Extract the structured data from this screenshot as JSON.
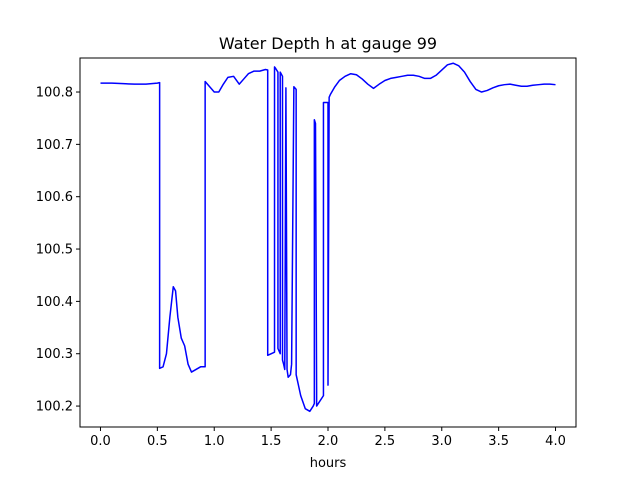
{
  "chart_data": {
    "type": "line",
    "title": "Water Depth h at gauge 99",
    "xlabel": "hours",
    "ylabel": "",
    "xlim": [
      -0.18,
      4.18
    ],
    "ylim": [
      100.16,
      100.865
    ],
    "xticks": [
      0.0,
      0.5,
      1.0,
      1.5,
      2.0,
      2.5,
      3.0,
      3.5,
      4.0
    ],
    "xtick_labels": [
      "0.0",
      "0.5",
      "1.0",
      "1.5",
      "2.0",
      "2.5",
      "3.0",
      "3.5",
      "4.0"
    ],
    "yticks": [
      100.2,
      100.3,
      100.4,
      100.5,
      100.6,
      100.7,
      100.8
    ],
    "ytick_labels": [
      "100.2",
      "100.3",
      "100.4",
      "100.5",
      "100.6",
      "100.7",
      "100.8"
    ],
    "grid": false,
    "series": [
      {
        "color": "#0000ff",
        "x": [
          0.0,
          0.1,
          0.2,
          0.3,
          0.4,
          0.5,
          0.52,
          0.52,
          0.55,
          0.58,
          0.61,
          0.64,
          0.66,
          0.68,
          0.71,
          0.74,
          0.77,
          0.8,
          0.84,
          0.88,
          0.92,
          0.92,
          0.96,
          1.0,
          1.04,
          1.08,
          1.12,
          1.17,
          1.22,
          1.26,
          1.3,
          1.35,
          1.4,
          1.45,
          1.47,
          1.47,
          1.53,
          1.53,
          1.54,
          1.56,
          1.56,
          1.58,
          1.58,
          1.6,
          1.6,
          1.61,
          1.62,
          1.63,
          1.64,
          1.65,
          1.67,
          1.68,
          1.7,
          1.72,
          1.72,
          1.76,
          1.8,
          1.84,
          1.87,
          1.88,
          1.88,
          1.89,
          1.9,
          1.9,
          1.96,
          1.96,
          1.99,
          2.0,
          2.0,
          2.01,
          2.02,
          2.06,
          2.1,
          2.15,
          2.2,
          2.25,
          2.3,
          2.35,
          2.4,
          2.45,
          2.5,
          2.55,
          2.6,
          2.65,
          2.7,
          2.75,
          2.8,
          2.85,
          2.9,
          2.95,
          3.0,
          3.05,
          3.1,
          3.15,
          3.2,
          3.25,
          3.3,
          3.35,
          3.4,
          3.45,
          3.5,
          3.55,
          3.6,
          3.65,
          3.7,
          3.75,
          3.8,
          3.85,
          3.9,
          3.95,
          4.0
        ],
        "y": [
          100.817,
          100.817,
          100.816,
          100.815,
          100.815,
          100.817,
          100.818,
          100.272,
          100.275,
          100.3,
          100.37,
          100.428,
          100.42,
          100.37,
          100.33,
          100.315,
          100.28,
          100.265,
          100.27,
          100.275,
          100.275,
          100.82,
          100.81,
          100.8,
          100.8,
          100.815,
          100.828,
          100.83,
          100.815,
          100.825,
          100.835,
          100.84,
          100.84,
          100.843,
          100.842,
          100.297,
          100.303,
          100.848,
          100.845,
          100.838,
          100.31,
          100.3,
          100.838,
          100.83,
          100.288,
          100.28,
          100.27,
          100.808,
          100.27,
          100.255,
          100.26,
          100.28,
          100.81,
          100.805,
          100.26,
          100.22,
          100.195,
          100.19,
          100.2,
          100.205,
          100.747,
          100.74,
          100.23,
          100.2,
          100.22,
          100.78,
          100.78,
          100.78,
          100.24,
          100.79,
          100.795,
          100.81,
          100.822,
          100.83,
          100.835,
          100.833,
          100.825,
          100.815,
          100.807,
          100.815,
          100.822,
          100.826,
          100.828,
          100.83,
          100.832,
          100.832,
          100.83,
          100.826,
          100.826,
          100.832,
          100.842,
          100.852,
          100.855,
          100.85,
          100.838,
          100.82,
          100.805,
          100.8,
          100.803,
          100.808,
          100.812,
          100.814,
          100.815,
          100.813,
          100.811,
          100.811,
          100.813,
          100.814,
          100.815,
          100.815,
          100.814
        ]
      }
    ]
  }
}
